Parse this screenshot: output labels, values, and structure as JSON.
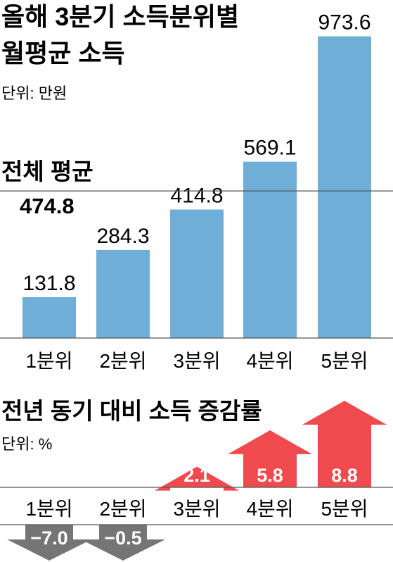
{
  "chart_data": [
    {
      "type": "bar",
      "title_lines": [
        "올해 3분기 소득분위별",
        "월평균 소득"
      ],
      "unit": "단위: 만원",
      "categories": [
        "1분위",
        "2분위",
        "3분위",
        "4분위",
        "5분위"
      ],
      "values": [
        131.8,
        284.3,
        414.8,
        569.1,
        973.6
      ],
      "value_labels": [
        "131.8",
        "284.3",
        "414.8",
        "569.1",
        "973.6"
      ],
      "average": {
        "label": "전체 평균",
        "value": 474.8,
        "value_label": "474.8"
      },
      "ylim": [
        0,
        1000
      ],
      "bar_color": "#6faed6",
      "line_color": "#555555"
    },
    {
      "type": "bar",
      "style": "arrows",
      "title": "전년 동기 대비 소득 증감률",
      "unit": "단위: %",
      "categories": [
        "1분위",
        "2분위",
        "3분위",
        "4분위",
        "5분위"
      ],
      "values": [
        -7.0,
        -0.5,
        2.1,
        5.8,
        8.8
      ],
      "value_labels": [
        "−7.0",
        "−0.5",
        "2.1",
        "5.8",
        "8.8"
      ],
      "positive_color": "#ef4b4f",
      "negative_color": "#757575"
    }
  ]
}
